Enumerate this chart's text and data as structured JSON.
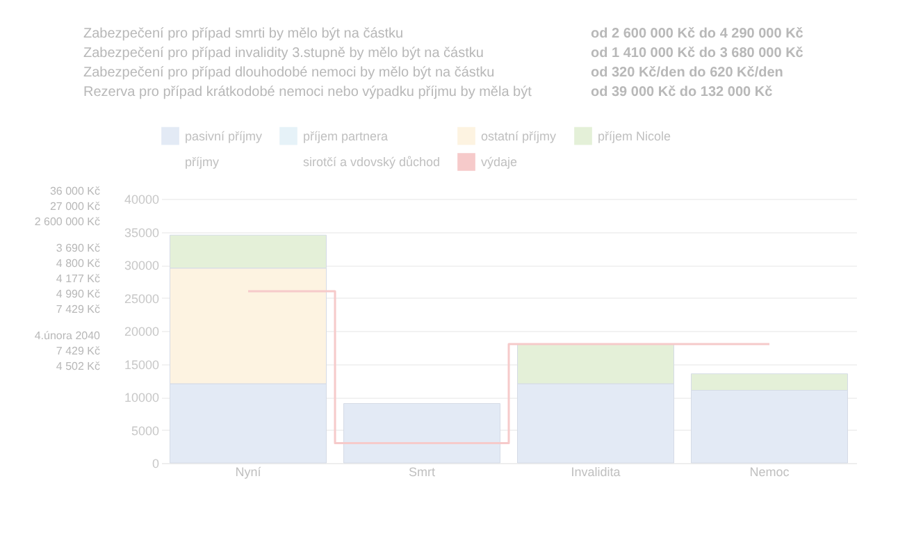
{
  "chart_data": {
    "type": "bar",
    "stacked": true,
    "categories": [
      "Nyní",
      "Smrt",
      "Invalidita",
      "Nemoc"
    ],
    "series": [
      {
        "name": "pasivní příjmy",
        "color": "#e3eaf5",
        "values": [
          12000,
          9000,
          12000,
          11000
        ]
      },
      {
        "name": "příjem partnera",
        "color": "#e6f2f8",
        "values": [
          null,
          null,
          null,
          null
        ]
      },
      {
        "name": "ostatní příjmy",
        "color": "#fdf3e1",
        "values": [
          17500,
          null,
          null,
          null
        ]
      },
      {
        "name": "příjem Nicole",
        "color": "#e4f0d8",
        "values": [
          5000,
          null,
          6000,
          2500
        ]
      },
      {
        "name": "příjmy",
        "values": [
          null,
          null,
          null,
          null
        ]
      },
      {
        "name": "sirotčí a vdovský důchod",
        "values": [
          null,
          null,
          null,
          null
        ]
      },
      {
        "name": "výdaje",
        "type": "step",
        "color": "#f6caca",
        "values": [
          26000,
          3000,
          18000,
          18000
        ]
      }
    ],
    "ylim": [
      0,
      40000
    ],
    "yticks": [
      0,
      5000,
      10000,
      15000,
      20000,
      25000,
      30000,
      35000,
      40000
    ],
    "grid": "y",
    "legend": "top",
    "annotations": [
      "Zabezpečení pro případ smrti by mělo být na částku",
      "Zabezpečení pro případ invalidity 3.stupně by mělo být na částku",
      "Zabezpečení pro případ dlouhodobé nemoci by mělo být na částku",
      "Rezerva pro případ krátkodobé nemoci nebo výpadku příjmu by měla být",
      "od 2 600 000 Kč do 4 290 000 Kč",
      "od 1 410 000 Kč do 3 680 000 Kč",
      "od 320 Kč/den do 620 Kč/den",
      "od 39 000 Kč do 132 000 Kč",
      "36 000 Kč",
      "27 000 Kč",
      "2 600 000 Kč",
      "3 690 Kč",
      "4 800 Kč",
      "4 177 Kč",
      "4 990 Kč",
      "7 429 Kč",
      "4.února 2040",
      "7 429 Kč",
      "4 502 Kč"
    ]
  }
}
